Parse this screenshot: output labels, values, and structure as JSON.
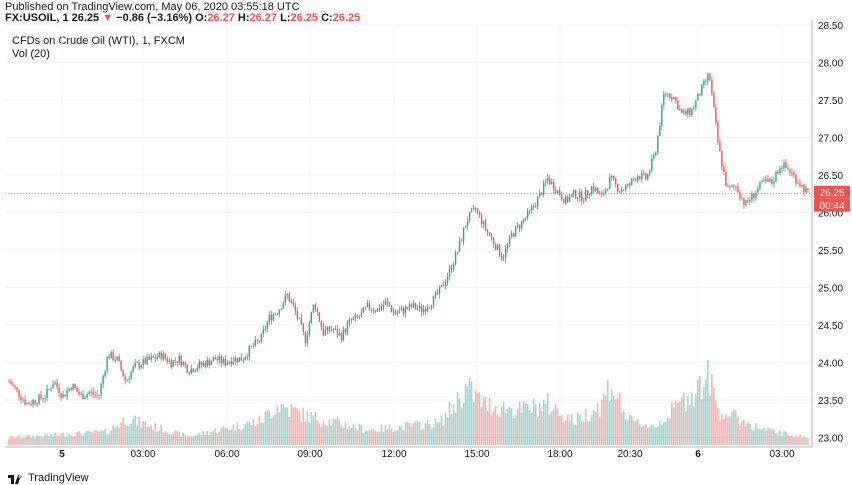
{
  "header": {
    "published": "Published on TradingView.com, May 06, 2020 03:55:18 UTC",
    "symbol": "FX:USOIL, 1",
    "last": "26.25",
    "change": "−0.86 (−3.16%)",
    "o_label": "O:",
    "o": "26.27",
    "h_label": "H:",
    "h": "26.27",
    "l_label": "L:",
    "l": "26.25",
    "c_label": "C:",
    "c": "26.25"
  },
  "chart_title": "CFDs on Crude Oil (WTI), 1, FXCM",
  "volume_label": "Vol (20)",
  "footer": {
    "logo_text": "TradingView"
  },
  "colors": {
    "up": "#26a69a",
    "down": "#ef5350",
    "grid": "#f0f3fa",
    "axis": "#b2b5be"
  },
  "chart_data": {
    "type": "candlestick",
    "title": "CFDs on Crude Oil (WTI), 1, FXCM",
    "ylim": [
      22.9,
      28.5
    ],
    "y_ticks": [
      "28.50",
      "28.00",
      "27.50",
      "27.00",
      "26.50",
      "26.00",
      "25.50",
      "25.00",
      "24.50",
      "24.00",
      "23.50",
      "23.00"
    ],
    "x_tick_labels": [
      "5",
      "03:00",
      "06:00",
      "09:00",
      "12:00",
      "15:00",
      "18:00",
      "20:30",
      "6",
      "03:00"
    ],
    "x_tick_bold": [
      true,
      false,
      false,
      false,
      false,
      false,
      false,
      false,
      true,
      false
    ],
    "price_line": 26.25,
    "price_badge": "26.25",
    "countdown_badge": "00:44",
    "close_path": [
      [
        0,
        23.75
      ],
      [
        1,
        23.6
      ],
      [
        2,
        23.45
      ],
      [
        3,
        23.5
      ],
      [
        4,
        23.55
      ],
      [
        5,
        23.75
      ],
      [
        6,
        23.55
      ],
      [
        7,
        23.7
      ],
      [
        8,
        23.55
      ],
      [
        9,
        23.6
      ],
      [
        10,
        23.55
      ],
      [
        11,
        24.1
      ],
      [
        12,
        24.05
      ],
      [
        13,
        23.75
      ],
      [
        14,
        23.95
      ],
      [
        15,
        24.0
      ],
      [
        16,
        24.05
      ],
      [
        17,
        24.1
      ],
      [
        18,
        24.0
      ],
      [
        19,
        24.05
      ],
      [
        20,
        23.9
      ],
      [
        21,
        23.95
      ],
      [
        22,
        24.0
      ],
      [
        23,
        24.05
      ],
      [
        24,
        24.0
      ],
      [
        25,
        24.05
      ],
      [
        26,
        24.05
      ],
      [
        27,
        24.2
      ],
      [
        28,
        24.3
      ],
      [
        29,
        24.6
      ],
      [
        30,
        24.7
      ],
      [
        31,
        24.9
      ],
      [
        32,
        24.65
      ],
      [
        33,
        24.3
      ],
      [
        34,
        24.8
      ],
      [
        35,
        24.4
      ],
      [
        36,
        24.45
      ],
      [
        37,
        24.35
      ],
      [
        38,
        24.55
      ],
      [
        39,
        24.6
      ],
      [
        40,
        24.75
      ],
      [
        41,
        24.7
      ],
      [
        42,
        24.8
      ],
      [
        43,
        24.65
      ],
      [
        44,
        24.7
      ],
      [
        45,
        24.75
      ],
      [
        46,
        24.7
      ],
      [
        47,
        24.8
      ],
      [
        48,
        24.95
      ],
      [
        49,
        25.2
      ],
      [
        50,
        25.5
      ],
      [
        51,
        25.9
      ],
      [
        52,
        26.05
      ],
      [
        53,
        25.8
      ],
      [
        54,
        25.6
      ],
      [
        55,
        25.4
      ],
      [
        56,
        25.7
      ],
      [
        57,
        25.85
      ],
      [
        58,
        26.0
      ],
      [
        59,
        26.2
      ],
      [
        60,
        26.45
      ],
      [
        61,
        26.3
      ],
      [
        62,
        26.15
      ],
      [
        63,
        26.25
      ],
      [
        64,
        26.2
      ],
      [
        65,
        26.35
      ],
      [
        66,
        26.2
      ],
      [
        67,
        26.45
      ],
      [
        68,
        26.3
      ],
      [
        69,
        26.35
      ],
      [
        70,
        26.5
      ],
      [
        71,
        26.45
      ],
      [
        72,
        26.8
      ],
      [
        73,
        27.6
      ],
      [
        74,
        27.55
      ],
      [
        75,
        27.3
      ],
      [
        76,
        27.35
      ],
      [
        77,
        27.6
      ],
      [
        78,
        27.85
      ],
      [
        79,
        26.9
      ],
      [
        80,
        26.3
      ],
      [
        81,
        26.35
      ],
      [
        82,
        26.1
      ],
      [
        83,
        26.25
      ],
      [
        84,
        26.4
      ],
      [
        85,
        26.4
      ],
      [
        86,
        26.65
      ],
      [
        87,
        26.55
      ],
      [
        88,
        26.4
      ],
      [
        89,
        26.25
      ]
    ],
    "volume_profile": [
      [
        0,
        0.05
      ],
      [
        11,
        0.1
      ],
      [
        13,
        0.22
      ],
      [
        20,
        0.06
      ],
      [
        28,
        0.2
      ],
      [
        30,
        0.35
      ],
      [
        33,
        0.25
      ],
      [
        40,
        0.12
      ],
      [
        48,
        0.18
      ],
      [
        51,
        0.5
      ],
      [
        53,
        0.35
      ],
      [
        57,
        0.3
      ],
      [
        60,
        0.35
      ],
      [
        63,
        0.2
      ],
      [
        66,
        0.35
      ],
      [
        67,
        0.55
      ],
      [
        69,
        0.2
      ],
      [
        72,
        0.15
      ],
      [
        78,
        0.6
      ],
      [
        79,
        0.3
      ],
      [
        84,
        0.12
      ],
      [
        89,
        0.05
      ]
    ]
  }
}
